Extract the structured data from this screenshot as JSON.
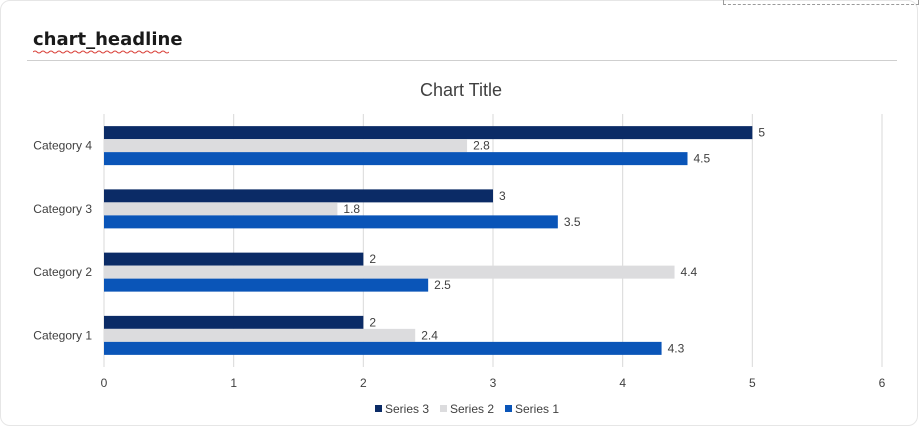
{
  "header": {
    "headline": "chart_headline"
  },
  "chart_data": {
    "type": "bar",
    "orientation": "horizontal",
    "title": "Chart Title",
    "categories": [
      "Category 1",
      "Category 2",
      "Category 3",
      "Category 4"
    ],
    "series": [
      {
        "name": "Series 3",
        "values": [
          2,
          2,
          3,
          5
        ],
        "color": "#0b2b66"
      },
      {
        "name": "Series 2",
        "values": [
          2.4,
          4.4,
          1.8,
          2.8
        ],
        "color": "#dcdcde"
      },
      {
        "name": "Series 1",
        "values": [
          4.3,
          2.5,
          3.5,
          4.5
        ],
        "color": "#0a55b8"
      }
    ],
    "xlim": [
      0,
      6
    ],
    "xticks": [
      "0",
      "1",
      "2",
      "3",
      "4",
      "5",
      "6"
    ],
    "grid": true,
    "legend": "bottom",
    "data_labels": true
  }
}
